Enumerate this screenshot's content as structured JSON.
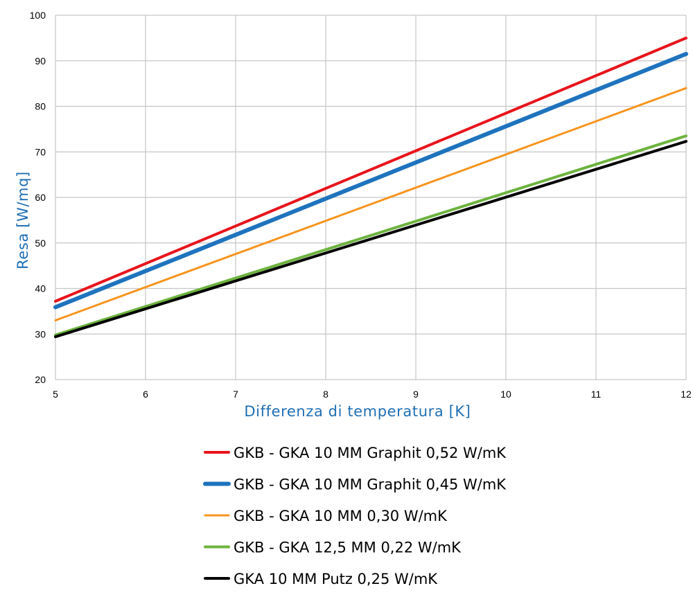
{
  "chart_data": {
    "type": "line",
    "title": "",
    "xlabel": "Differenza di temperatura [K]",
    "ylabel": "Resa [W/mq]",
    "xlim": [
      5,
      12
    ],
    "ylim": [
      20,
      100
    ],
    "xticks": [
      "5",
      "6",
      "7",
      "8",
      "9",
      "10",
      "11",
      "12"
    ],
    "yticks": [
      "20",
      "30",
      "40",
      "50",
      "60",
      "70",
      "80",
      "90",
      "100"
    ],
    "grid": true,
    "legend_position": "bottom",
    "x": [
      5,
      12
    ],
    "series": [
      {
        "name": "GKB - GKA 10 MM Graphit 0,52 W/mK",
        "color": "#e8141c",
        "width": "medium",
        "values": [
          37.2,
          95.0
        ]
      },
      {
        "name": "GKB - GKA 10 MM Graphit 0,45 W/mK",
        "color": "#1e73be",
        "width": "thick",
        "values": [
          35.9,
          91.5
        ]
      },
      {
        "name": "GKB - GKA 10 MM 0,30 W/mK",
        "color": "#f7941d",
        "width": "thin",
        "values": [
          33.0,
          84.0
        ]
      },
      {
        "name": "GKB - GKA 12,5 MM 0,22 W/mK",
        "color": "#6db33f",
        "width": "medium",
        "values": [
          29.8,
          73.5
        ]
      },
      {
        "name": "GKA 10 MM Putz 0,25 W/mK",
        "color": "#000000",
        "width": "medium",
        "values": [
          29.4,
          72.3
        ]
      }
    ]
  }
}
